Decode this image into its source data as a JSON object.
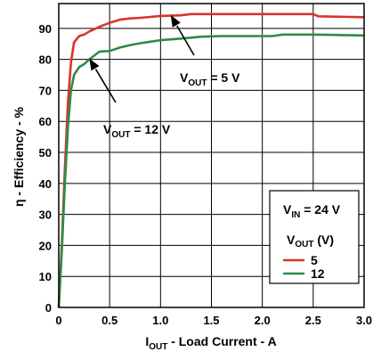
{
  "chart_data": {
    "type": "line",
    "title": "",
    "xlabel": {
      "main": "I",
      "sub": "OUT",
      "rest": " - Load Current - A"
    },
    "ylabel": "η - Efficiency - %",
    "xlim": [
      0,
      3.0
    ],
    "ylim": [
      0,
      98
    ],
    "x_ticks": [
      "0",
      "0.5",
      "1.0",
      "1.5",
      "2.0",
      "2.5",
      "3.0"
    ],
    "y_ticks": [
      "0",
      "10",
      "20",
      "30",
      "40",
      "50",
      "60",
      "70",
      "80",
      "90"
    ],
    "grid": true,
    "legend": {
      "placement": "bottom-right",
      "vin": {
        "main": "V",
        "sub": "IN",
        "rest": " = 24 V"
      },
      "header": {
        "main": "V",
        "sub": "OUT",
        "rest": " (V)"
      },
      "entries": [
        "5",
        "12"
      ]
    },
    "series": [
      {
        "name": "5",
        "color": "#d9342b",
        "x": [
          0,
          0.03,
          0.06,
          0.09,
          0.12,
          0.15,
          0.2,
          0.25,
          0.3,
          0.4,
          0.5,
          0.6,
          0.7,
          0.8,
          0.9,
          1.0,
          1.1,
          1.2,
          1.3,
          1.5,
          2.0,
          2.5,
          2.55,
          3.0
        ],
        "values": [
          0,
          20,
          45,
          66,
          79,
          85.5,
          87.5,
          88,
          89,
          90.5,
          91.8,
          92.8,
          93.2,
          93.4,
          93.7,
          94.0,
          94.1,
          94.2,
          94.6,
          94.6,
          94.6,
          94.6,
          93.9,
          93.6
        ]
      },
      {
        "name": "12",
        "color": "#2e8b46",
        "x": [
          0,
          0.03,
          0.06,
          0.09,
          0.12,
          0.15,
          0.2,
          0.25,
          0.3,
          0.4,
          0.5,
          0.6,
          0.7,
          0.8,
          0.9,
          1.0,
          1.2,
          1.4,
          1.6,
          2.0,
          2.1,
          2.2,
          2.5,
          3.0
        ],
        "values": [
          0,
          18,
          40,
          58,
          70,
          75,
          77.5,
          78.5,
          80,
          82.5,
          82.7,
          83.8,
          84.6,
          85.2,
          85.7,
          86.2,
          86.7,
          87.3,
          87.5,
          87.5,
          87.5,
          88.0,
          88.0,
          87.7
        ]
      }
    ],
    "annotations": [
      {
        "main": "V",
        "sub": "OUT",
        "rest": " = 5 V",
        "x": 1.1,
        "y": 94.3
      },
      {
        "main": "V",
        "sub": "OUT",
        "rest": " = 12 V",
        "x": 0.3,
        "y": 80.3
      }
    ]
  }
}
